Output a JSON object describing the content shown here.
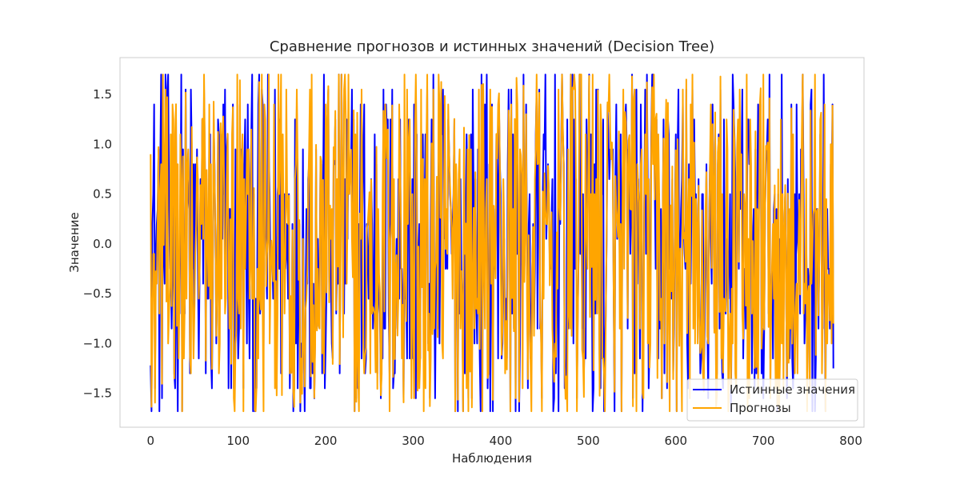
{
  "chart_data": {
    "type": "line",
    "title": "Сравнение прогнозов и истинных значений (Decision Tree)",
    "xlabel": "Наблюдения",
    "ylabel": "Значение",
    "xlim": [
      -35,
      815
    ],
    "ylim": [
      -1.84,
      1.87
    ],
    "xticks": [
      0,
      100,
      200,
      300,
      400,
      500,
      600,
      700,
      800
    ],
    "xtick_labels": [
      "0",
      "100",
      "200",
      "300",
      "400",
      "500",
      "600",
      "700",
      "800"
    ],
    "yticks": [
      -1.5,
      -1.0,
      -0.5,
      0.0,
      0.5,
      1.0,
      1.5
    ],
    "ytick_labels": [
      "−1.5",
      "−1.0",
      "−0.5",
      "0.0",
      "0.5",
      "1.0",
      "1.5"
    ],
    "grid": false,
    "legend_position": "lower-right",
    "n_points": 781,
    "series": [
      {
        "name": "Истинные значения",
        "color": "#0000ff"
      },
      {
        "name": "Прогнозы",
        "color": "#ffa500"
      }
    ]
  }
}
